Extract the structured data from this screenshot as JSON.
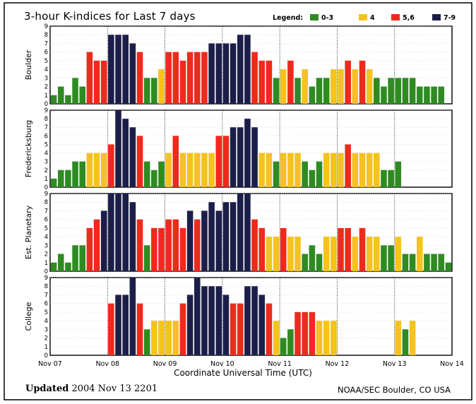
{
  "title": "3-hour K-indices for Last 7 days",
  "legend": {
    "label": "Legend:",
    "items": [
      {
        "label": "0-3",
        "color": "#2e8b22"
      },
      {
        "label": "4",
        "color": "#f5c21e"
      },
      {
        "label": "5,6",
        "color": "#ee2a1c"
      },
      {
        "label": "7-9",
        "color": "#1c1e4a"
      }
    ]
  },
  "footer": {
    "updated_label": "Updated",
    "updated_value": "2004 Nov 13 2201",
    "credit": "NOAA/SEC Boulder, CO USA"
  },
  "chart_data": {
    "type": "bar",
    "xlabel": "Coordinate Universal Time (UTC)",
    "x_tick_labels": [
      "Nov 07",
      "Nov 08",
      "Nov 09",
      "Nov 10",
      "Nov 11",
      "Nov 12",
      "Nov 13",
      "Nov 14"
    ],
    "ylim": [
      0,
      9
    ],
    "y_ticks": [
      0,
      1,
      2,
      3,
      4,
      5,
      6,
      7,
      8,
      9
    ],
    "bins_per_day": 8,
    "series": [
      {
        "name": "Boulder",
        "values": [
          1,
          2,
          1,
          3,
          2,
          6,
          5,
          5,
          8,
          8,
          8,
          7,
          6,
          3,
          3,
          4,
          6,
          6,
          5,
          6,
          6,
          6,
          7,
          7,
          7,
          7,
          8,
          8,
          6,
          5,
          5,
          3,
          4,
          5,
          3,
          4,
          2,
          3,
          3,
          4,
          4,
          5,
          4,
          5,
          4,
          3,
          2,
          3,
          3,
          3,
          3,
          2,
          2,
          2,
          2
        ]
      },
      {
        "name": "Fredericksburg",
        "values": [
          1,
          2,
          2,
          3,
          3,
          4,
          4,
          4,
          5,
          9,
          8,
          7,
          6,
          3,
          2,
          3,
          4,
          6,
          4,
          4,
          4,
          4,
          4,
          6,
          6,
          7,
          7,
          8,
          7,
          4,
          4,
          3,
          4,
          4,
          4,
          3,
          2,
          3,
          4,
          4,
          4,
          5,
          4,
          4,
          4,
          4,
          2,
          2,
          3
        ]
      },
      {
        "name": "Est. Planetary",
        "values": [
          1,
          2,
          1,
          3,
          3,
          5,
          6,
          7,
          9,
          9,
          9,
          8,
          6,
          3,
          5,
          5,
          6,
          6,
          5,
          7,
          6,
          7,
          8,
          7,
          8,
          8,
          9,
          9,
          6,
          5,
          4,
          4,
          5,
          4,
          4,
          2,
          3,
          2,
          4,
          4,
          5,
          5,
          4,
          5,
          4,
          4,
          3,
          3,
          4,
          2,
          2,
          4,
          2,
          2,
          2,
          1
        ]
      },
      {
        "name": "College",
        "values": [
          null,
          null,
          null,
          null,
          null,
          null,
          null,
          null,
          6,
          7,
          7,
          9,
          6,
          3,
          4,
          4,
          4,
          4,
          6,
          7,
          9,
          8,
          8,
          8,
          7,
          6,
          6,
          8,
          8,
          7,
          6,
          4,
          2,
          3,
          5,
          5,
          5,
          4,
          4,
          4,
          null,
          null,
          null,
          null,
          null,
          null,
          null,
          null,
          4,
          3,
          4,
          null,
          null,
          null,
          null,
          null
        ]
      }
    ]
  }
}
